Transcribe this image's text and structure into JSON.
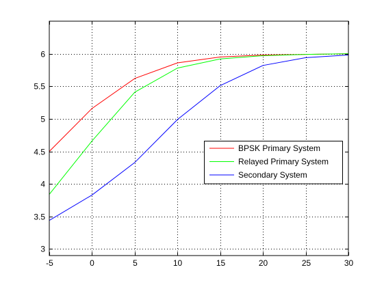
{
  "chart_data": {
    "type": "line",
    "title": "",
    "xlabel": "",
    "ylabel": "",
    "xlim": [
      -5,
      30
    ],
    "ylim": [
      2.9,
      6.5
    ],
    "xticks": [
      -5,
      0,
      5,
      10,
      15,
      20,
      25,
      30
    ],
    "yticks": [
      3,
      3.5,
      4,
      4.5,
      5,
      5.5,
      6
    ],
    "xtick_labels": [
      "-5",
      "0",
      "5",
      "10",
      "15",
      "20",
      "25",
      "30"
    ],
    "ytick_labels": [
      "3",
      "3.5",
      "4",
      "4.5",
      "5",
      "5.5",
      "6"
    ],
    "grid": "dotted",
    "legend_position": "right-middle",
    "x": [
      -5,
      0,
      5,
      10,
      15,
      20,
      25,
      30
    ],
    "series": [
      {
        "name": "BPSK Primary System",
        "color": "#ff0000",
        "values": [
          4.5,
          5.16,
          5.62,
          5.86,
          5.95,
          5.98,
          5.99,
          6.0
        ]
      },
      {
        "name": "Relayed Primary System",
        "color": "#00ff00",
        "values": [
          3.84,
          4.66,
          5.41,
          5.78,
          5.92,
          5.97,
          5.99,
          6.0
        ]
      },
      {
        "name": "Secondary System",
        "color": "#0000ff",
        "values": [
          3.44,
          3.83,
          4.33,
          4.99,
          5.51,
          5.82,
          5.94,
          5.98
        ]
      }
    ]
  }
}
